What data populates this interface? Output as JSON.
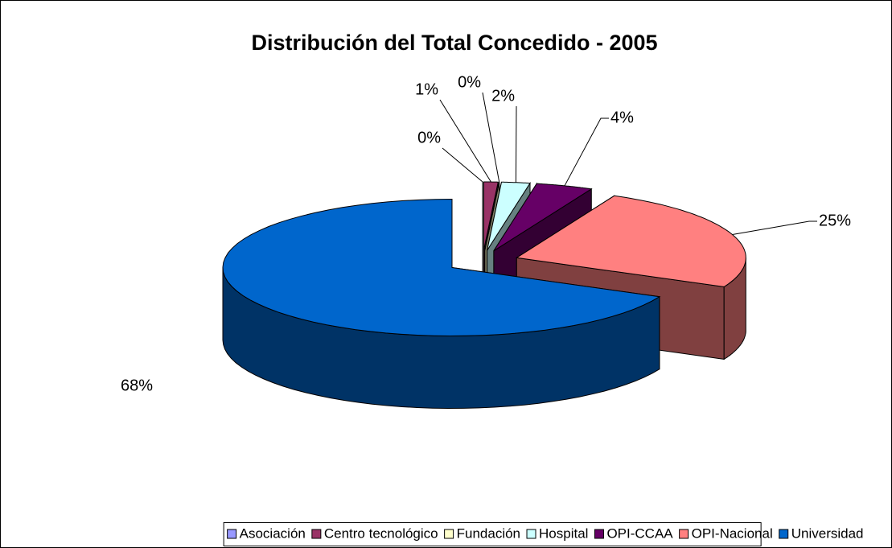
{
  "chart_data": {
    "type": "pie3d",
    "title": "Distribución del Total Concedido - 2005",
    "categories": [
      "Asociación",
      "Centro tecnológico",
      "Fundación",
      "Hospital",
      "OPI-CCAA",
      "OPI-Nacional",
      "Universidad"
    ],
    "values": [
      0,
      1,
      0,
      2,
      4,
      25,
      68
    ],
    "value_labels": [
      "0%",
      "1%",
      "0%",
      "2%",
      "4%",
      "25%",
      "68%"
    ],
    "colors": [
      "#9999ff",
      "#993366",
      "#ffffcc",
      "#ccffff",
      "#660066",
      "#ff8080",
      "#0066cc"
    ],
    "legend": "bottom"
  }
}
